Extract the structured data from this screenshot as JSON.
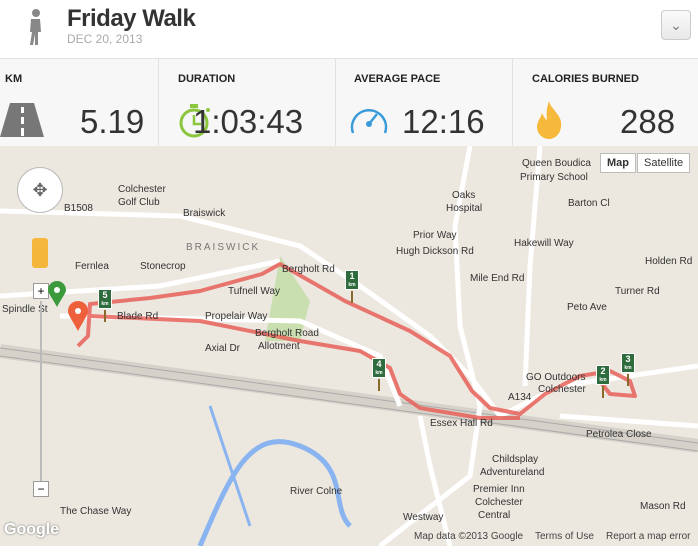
{
  "header": {
    "title": "Friday Walk",
    "date": "DEC 20, 2013",
    "activity_icon": "walker-icon",
    "menu_icon": "chevron-down-icon"
  },
  "stats": [
    {
      "label": "KM",
      "value": "5.19",
      "icon": "road-icon",
      "color": "#777777"
    },
    {
      "label": "DURATION",
      "value": "1:03:43",
      "icon": "stopwatch-icon",
      "color": "#8cc63f"
    },
    {
      "label": "AVERAGE PACE",
      "value": "12:16",
      "icon": "speedometer-icon",
      "color": "#3a9ad9"
    },
    {
      "label": "CALORIES BURNED",
      "value": "288",
      "icon": "flame-icon",
      "color": "#f6b93b"
    }
  ],
  "map": {
    "map_type_buttons": [
      "Map",
      "Satellite"
    ],
    "selected_type": "Map",
    "route_color": "#e8625a",
    "km_markers": [
      "1",
      "2",
      "3",
      "4",
      "5"
    ],
    "km_unit": "km",
    "labels": [
      "Queen Boudica",
      "Primary School",
      "Oaks",
      "Hospital",
      "Barton Cl",
      "Holden Rd",
      "Turner Rd",
      "Peto Ave",
      "A134",
      "B1508",
      "Braiswick",
      "Colchester",
      "Golf Club",
      "BRAISWICK",
      "Fernlea",
      "Stonecrop",
      "Tufnell Way",
      "Bergholt Rd",
      "Propelair Way",
      "Bergholt Road",
      "Allotment",
      "Axial Dr",
      "Blade Rd",
      "Spindle St",
      "Prior Way",
      "Hugh Dickson Rd",
      "Mile End Rd",
      "Hakewill Way",
      "GO Outdoors",
      "Colchester",
      "Petrolea Close",
      "Essex Hall Rd",
      "Childsplay",
      "Adventureland",
      "Premier Inn",
      "Colchester",
      "Central",
      "Westway",
      "River Colne",
      "The Chase Way",
      "Mason Rd"
    ],
    "attribution": "Map data ©2013 Google",
    "terms": "Terms of Use",
    "report": "Report a map error",
    "logo": "Google"
  }
}
